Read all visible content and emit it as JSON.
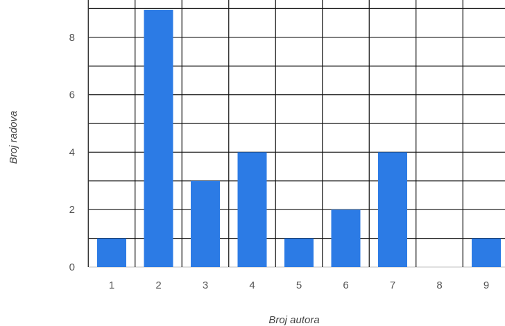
{
  "chart_data": {
    "type": "bar",
    "categories": [
      "1",
      "2",
      "3",
      "4",
      "5",
      "6",
      "7",
      "8",
      "9"
    ],
    "values": [
      1,
      9,
      3,
      4,
      1,
      2,
      4,
      0,
      1
    ],
    "xlabel": "Broj autora",
    "ylabel": "Broj radova",
    "ylim": [
      0,
      9
    ],
    "yticks": [
      "0",
      "2",
      "4",
      "6",
      "8"
    ],
    "grid": true,
    "bar_color": "#2c7be5",
    "grid_color": "#111111"
  }
}
